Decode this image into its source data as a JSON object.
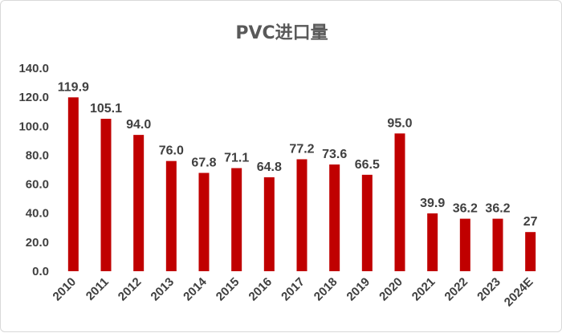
{
  "chart_data": {
    "type": "bar",
    "title": "PVC进口量",
    "xlabel": "",
    "ylabel": "",
    "ylim": [
      0,
      140
    ],
    "yticks": [
      "0.0",
      "20.0",
      "40.0",
      "60.0",
      "80.0",
      "100.0",
      "120.0",
      "140.0"
    ],
    "grid": false,
    "legend": "none",
    "bar_color": "#c00000",
    "categories": [
      "2010",
      "2011",
      "2012",
      "2013",
      "2014",
      "2015",
      "2016",
      "2017",
      "2018",
      "2019",
      "2020",
      "2021",
      "2022",
      "2023",
      "2024E"
    ],
    "values": [
      119.9,
      105.1,
      94.0,
      76.0,
      67.8,
      71.1,
      64.8,
      77.2,
      73.6,
      66.5,
      95.0,
      39.9,
      36.2,
      36.2,
      27
    ],
    "data_labels": [
      "119.9",
      "105.1",
      "94.0",
      "76.0",
      "67.8",
      "71.1",
      "64.8",
      "77.2",
      "73.6",
      "66.5",
      "95.0",
      "39.9",
      "36.2",
      "36.2",
      "27"
    ]
  }
}
